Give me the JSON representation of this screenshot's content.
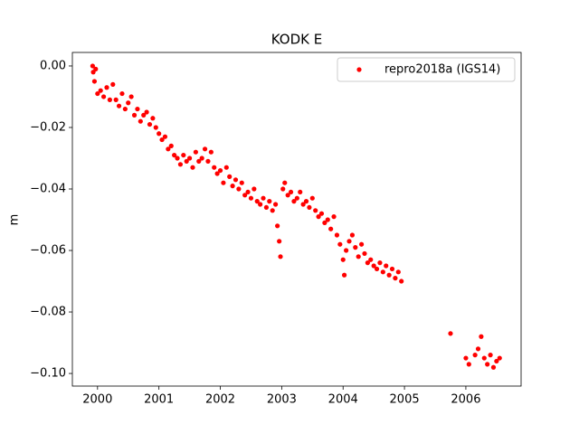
{
  "chart_data": {
    "type": "scatter",
    "title": "KODK E",
    "y_label": "m",
    "xlim": [
      1999.59,
      2006.9
    ],
    "ylim": [
      -0.1041,
      0.0044
    ],
    "xticks": [
      2000,
      2001,
      2002,
      2003,
      2004,
      2005,
      2006
    ],
    "yticks": [
      {
        "value": 0,
        "label": "0.00"
      },
      {
        "value": -0.02,
        "label": "−0.02"
      },
      {
        "value": -0.04,
        "label": "−0.04"
      },
      {
        "value": -0.06,
        "label": "−0.06"
      },
      {
        "value": -0.08,
        "label": "−0.08"
      },
      {
        "value": -0.1,
        "label": "−0.10"
      }
    ],
    "legend": "upper right",
    "series": [
      {
        "name": "repro2018a (IGS14)",
        "color": "#ff0000",
        "x": [
          1999.92,
          1999.93,
          1999.95,
          1999.97,
          2000.0,
          2000.05,
          2000.1,
          2000.15,
          2000.2,
          2000.25,
          2000.3,
          2000.35,
          2000.4,
          2000.45,
          2000.5,
          2000.55,
          2000.6,
          2000.65,
          2000.7,
          2000.75,
          2000.8,
          2000.85,
          2000.9,
          2000.95,
          2001.0,
          2001.05,
          2001.1,
          2001.15,
          2001.2,
          2001.25,
          2001.3,
          2001.35,
          2001.4,
          2001.45,
          2001.5,
          2001.55,
          2001.6,
          2001.65,
          2001.7,
          2001.75,
          2001.8,
          2001.85,
          2001.9,
          2001.95,
          2002.0,
          2002.05,
          2002.1,
          2002.15,
          2002.2,
          2002.25,
          2002.3,
          2002.35,
          2002.4,
          2002.45,
          2002.5,
          2002.55,
          2002.6,
          2002.65,
          2002.7,
          2002.75,
          2002.8,
          2002.85,
          2002.9,
          2002.93,
          2002.96,
          2002.98,
          2003.02,
          2003.05,
          2003.1,
          2003.15,
          2003.2,
          2003.25,
          2003.3,
          2003.35,
          2003.4,
          2003.45,
          2003.5,
          2003.55,
          2003.6,
          2003.65,
          2003.7,
          2003.75,
          2003.8,
          2003.85,
          2003.9,
          2003.95,
          2004.0,
          2004.02,
          2004.05,
          2004.1,
          2004.15,
          2004.2,
          2004.25,
          2004.3,
          2004.35,
          2004.4,
          2004.45,
          2004.5,
          2004.55,
          2004.6,
          2004.65,
          2004.7,
          2004.75,
          2004.8,
          2004.85,
          2004.9,
          2004.95,
          2005.75,
          2006.0,
          2006.05,
          2006.15,
          2006.2,
          2006.25,
          2006.3,
          2006.35,
          2006.4,
          2006.45,
          2006.5,
          2006.55
        ],
        "values": [
          0.0,
          -0.002,
          -0.005,
          -0.001,
          -0.009,
          -0.008,
          -0.01,
          -0.007,
          -0.011,
          -0.006,
          -0.011,
          -0.013,
          -0.009,
          -0.014,
          -0.012,
          -0.01,
          -0.016,
          -0.014,
          -0.018,
          -0.016,
          -0.015,
          -0.019,
          -0.017,
          -0.02,
          -0.022,
          -0.024,
          -0.023,
          -0.027,
          -0.026,
          -0.029,
          -0.03,
          -0.032,
          -0.029,
          -0.031,
          -0.03,
          -0.033,
          -0.028,
          -0.031,
          -0.03,
          -0.027,
          -0.031,
          -0.028,
          -0.033,
          -0.035,
          -0.034,
          -0.038,
          -0.033,
          -0.036,
          -0.039,
          -0.037,
          -0.04,
          -0.038,
          -0.042,
          -0.041,
          -0.043,
          -0.04,
          -0.044,
          -0.045,
          -0.043,
          -0.046,
          -0.044,
          -0.047,
          -0.045,
          -0.052,
          -0.057,
          -0.062,
          -0.04,
          -0.038,
          -0.042,
          -0.041,
          -0.044,
          -0.043,
          -0.041,
          -0.045,
          -0.044,
          -0.046,
          -0.043,
          -0.047,
          -0.049,
          -0.048,
          -0.051,
          -0.05,
          -0.053,
          -0.049,
          -0.055,
          -0.058,
          -0.063,
          -0.068,
          -0.06,
          -0.057,
          -0.055,
          -0.059,
          -0.062,
          -0.058,
          -0.061,
          -0.064,
          -0.063,
          -0.065,
          -0.066,
          -0.064,
          -0.067,
          -0.065,
          -0.068,
          -0.066,
          -0.069,
          -0.067,
          -0.07,
          -0.087,
          -0.095,
          -0.097,
          -0.094,
          -0.092,
          -0.088,
          -0.095,
          -0.097,
          -0.094,
          -0.098,
          -0.096,
          -0.095
        ]
      }
    ]
  }
}
